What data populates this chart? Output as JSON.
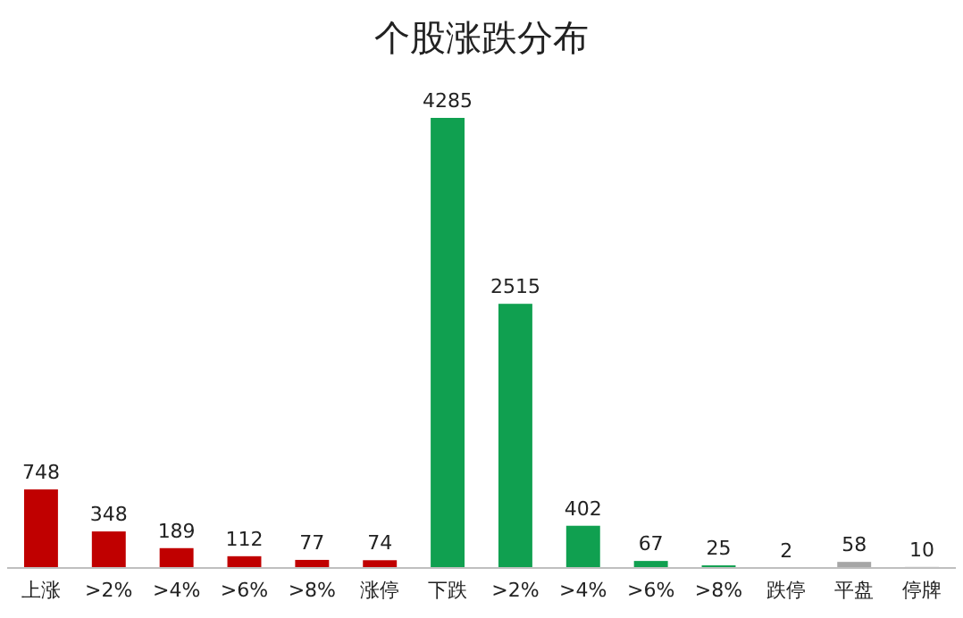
{
  "chart_data": {
    "type": "bar",
    "title": "个股涨跌分布",
    "categories": [
      "上涨",
      ">2%",
      ">4%",
      ">6%",
      ">8%",
      "涨停",
      "下跌",
      ">2%",
      ">4%",
      ">6%",
      ">8%",
      "跌停",
      "平盘",
      "停牌"
    ],
    "values": [
      748,
      348,
      189,
      112,
      77,
      74,
      4285,
      2515,
      402,
      67,
      25,
      2,
      58,
      10
    ],
    "colors": [
      "#c00000",
      "#c00000",
      "#c00000",
      "#c00000",
      "#c00000",
      "#c00000",
      "#10a050",
      "#10a050",
      "#10a050",
      "#10a050",
      "#10a050",
      "#10a050",
      "#a6a6a6",
      "#a6a6a6"
    ],
    "data_labels": true
  }
}
